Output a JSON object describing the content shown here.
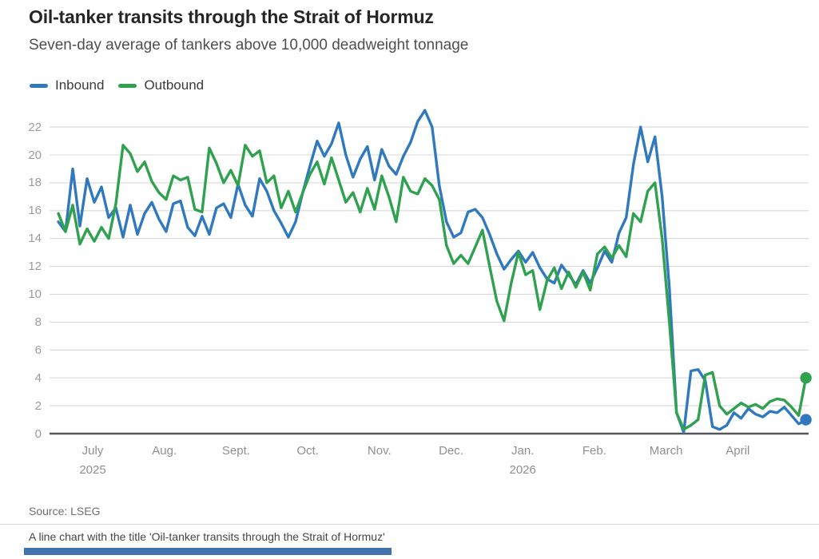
{
  "header": {
    "title": "Oil-tanker transits through the Strait of Hormuz",
    "subtitle": "Seven-day average of tankers above 10,000 deadweight tonnage"
  },
  "legend": {
    "items": [
      {
        "label": "Inbound",
        "color": "#3079be"
      },
      {
        "label": "Outbound",
        "color": "#2fa14f"
      }
    ]
  },
  "chart_data": {
    "type": "line",
    "title": "Oil-tanker transits through the Strait of Hormuz",
    "subtitle": "Seven-day average of tankers above 10,000 deadweight tonnage",
    "xlabel": "",
    "ylabel": "",
    "ylim": [
      0,
      23.5
    ],
    "y_ticks": [
      0,
      2,
      4,
      6,
      8,
      10,
      12,
      14,
      16,
      18,
      20,
      22
    ],
    "grid": "horizontal",
    "legend_position": "top-left",
    "end_point_markers": true,
    "x_ticks": [
      {
        "label": "July",
        "year": "2025"
      },
      {
        "label": "Aug.",
        "year": ""
      },
      {
        "label": "Sept.",
        "year": ""
      },
      {
        "label": "Oct.",
        "year": ""
      },
      {
        "label": "Nov.",
        "year": ""
      },
      {
        "label": "Dec.",
        "year": ""
      },
      {
        "label": "Jan.",
        "year": "2026"
      },
      {
        "label": "Feb.",
        "year": ""
      },
      {
        "label": "March",
        "year": ""
      },
      {
        "label": "April",
        "year": ""
      }
    ],
    "series": [
      {
        "name": "Inbound",
        "color": "#3079be",
        "values": [
          15.2,
          14.5,
          19.0,
          14.9,
          18.3,
          16.6,
          17.7,
          15.5,
          16.2,
          14.1,
          16.4,
          14.3,
          15.8,
          16.6,
          15.4,
          14.5,
          16.5,
          16.7,
          14.8,
          14.2,
          15.6,
          14.3,
          16.2,
          16.5,
          15.5,
          17.9,
          16.4,
          15.6,
          18.3,
          17.4,
          16.0,
          15.1,
          14.1,
          15.2,
          17.3,
          19.2,
          21.0,
          19.9,
          20.8,
          22.3,
          20.0,
          18.4,
          19.7,
          20.6,
          18.2,
          20.4,
          19.2,
          18.6,
          19.9,
          20.9,
          22.4,
          23.2,
          22.0,
          17.8,
          15.2,
          14.1,
          14.4,
          15.9,
          16.1,
          15.5,
          14.3,
          12.9,
          11.8,
          12.5,
          13.1,
          12.3,
          13.0,
          11.9,
          11.1,
          10.8,
          12.1,
          11.4,
          10.7,
          11.7,
          10.8,
          11.9,
          13.1,
          12.3,
          14.4,
          15.5,
          19.3,
          22.0,
          19.5,
          21.3,
          17.0,
          10.5,
          1.5,
          0.1,
          4.5,
          4.6,
          3.8,
          0.5,
          0.3,
          0.6,
          1.5,
          1.1,
          1.8,
          1.4,
          1.2,
          1.6,
          1.5,
          1.9,
          1.3,
          0.7,
          1.0
        ]
      },
      {
        "name": "Outbound",
        "color": "#2fa14f",
        "values": [
          15.8,
          14.5,
          16.4,
          13.6,
          14.7,
          13.8,
          14.8,
          14.0,
          16.5,
          20.7,
          20.1,
          18.8,
          19.5,
          18.1,
          17.3,
          16.8,
          18.5,
          18.2,
          18.4,
          16.1,
          15.9,
          20.5,
          19.4,
          18.0,
          18.9,
          17.8,
          20.7,
          19.9,
          20.3,
          18.0,
          18.5,
          16.2,
          17.4,
          15.9,
          17.3,
          18.6,
          19.5,
          17.9,
          19.8,
          18.2,
          16.6,
          17.3,
          15.9,
          17.6,
          16.1,
          18.5,
          17.0,
          15.2,
          18.4,
          17.4,
          17.2,
          18.3,
          17.8,
          16.8,
          13.5,
          12.2,
          12.8,
          12.2,
          13.4,
          14.6,
          12.0,
          9.5,
          8.1,
          10.8,
          13.0,
          11.4,
          11.7,
          8.9,
          11.0,
          11.9,
          10.4,
          11.6,
          10.5,
          11.6,
          10.3,
          12.9,
          13.4,
          12.6,
          13.5,
          12.7,
          15.8,
          15.2,
          17.4,
          18.0,
          14.0,
          8.0,
          1.5,
          0.3,
          0.6,
          1.0,
          4.2,
          4.4,
          2.0,
          1.4,
          1.8,
          2.2,
          1.9,
          2.1,
          1.8,
          2.3,
          2.5,
          2.4,
          1.9,
          1.3,
          4.0
        ]
      }
    ]
  },
  "footer": {
    "source": "Source: LSEG",
    "caption": "A line chart with the title 'Oil-tanker transits through the Strait of Hormuz'"
  },
  "colors": {
    "grid_line": "#d8d8d8",
    "zero_line": "#55565a",
    "axis_text": "#9c9c9c",
    "accent_bar": "#4273ae"
  }
}
